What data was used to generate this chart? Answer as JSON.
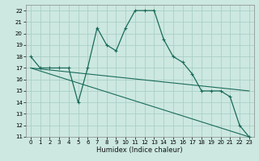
{
  "xlabel": "Humidex (Indice chaleur)",
  "bg_color": "#cce8e0",
  "grid_color": "#aacfc8",
  "line_color": "#1a6b5a",
  "xlim": [
    -0.5,
    23.5
  ],
  "ylim": [
    11,
    22.5
  ],
  "yticks": [
    11,
    12,
    13,
    14,
    15,
    16,
    17,
    18,
    19,
    20,
    21,
    22
  ],
  "xticks": [
    0,
    1,
    2,
    3,
    4,
    5,
    6,
    7,
    8,
    9,
    10,
    11,
    12,
    13,
    14,
    15,
    16,
    17,
    18,
    19,
    20,
    21,
    22,
    23
  ],
  "line1_x": [
    0,
    1,
    2,
    3,
    4,
    5,
    6,
    7,
    8,
    9,
    10,
    11,
    12,
    13,
    14,
    15,
    16,
    17,
    18,
    19,
    20,
    21,
    22,
    23
  ],
  "line1_y": [
    18,
    17,
    17,
    17,
    17,
    14,
    17,
    20.5,
    19,
    18.5,
    20.5,
    22,
    22,
    22,
    19.5,
    18,
    17.5,
    16.5,
    15,
    15,
    15,
    14.5,
    12,
    11
  ],
  "line2_x": [
    0,
    23
  ],
  "line2_y": [
    17.0,
    15.0
  ],
  "line3_x": [
    0,
    23
  ],
  "line3_y": [
    17.0,
    11.0
  ],
  "xlabel_fontsize": 6,
  "tick_fontsize": 5
}
